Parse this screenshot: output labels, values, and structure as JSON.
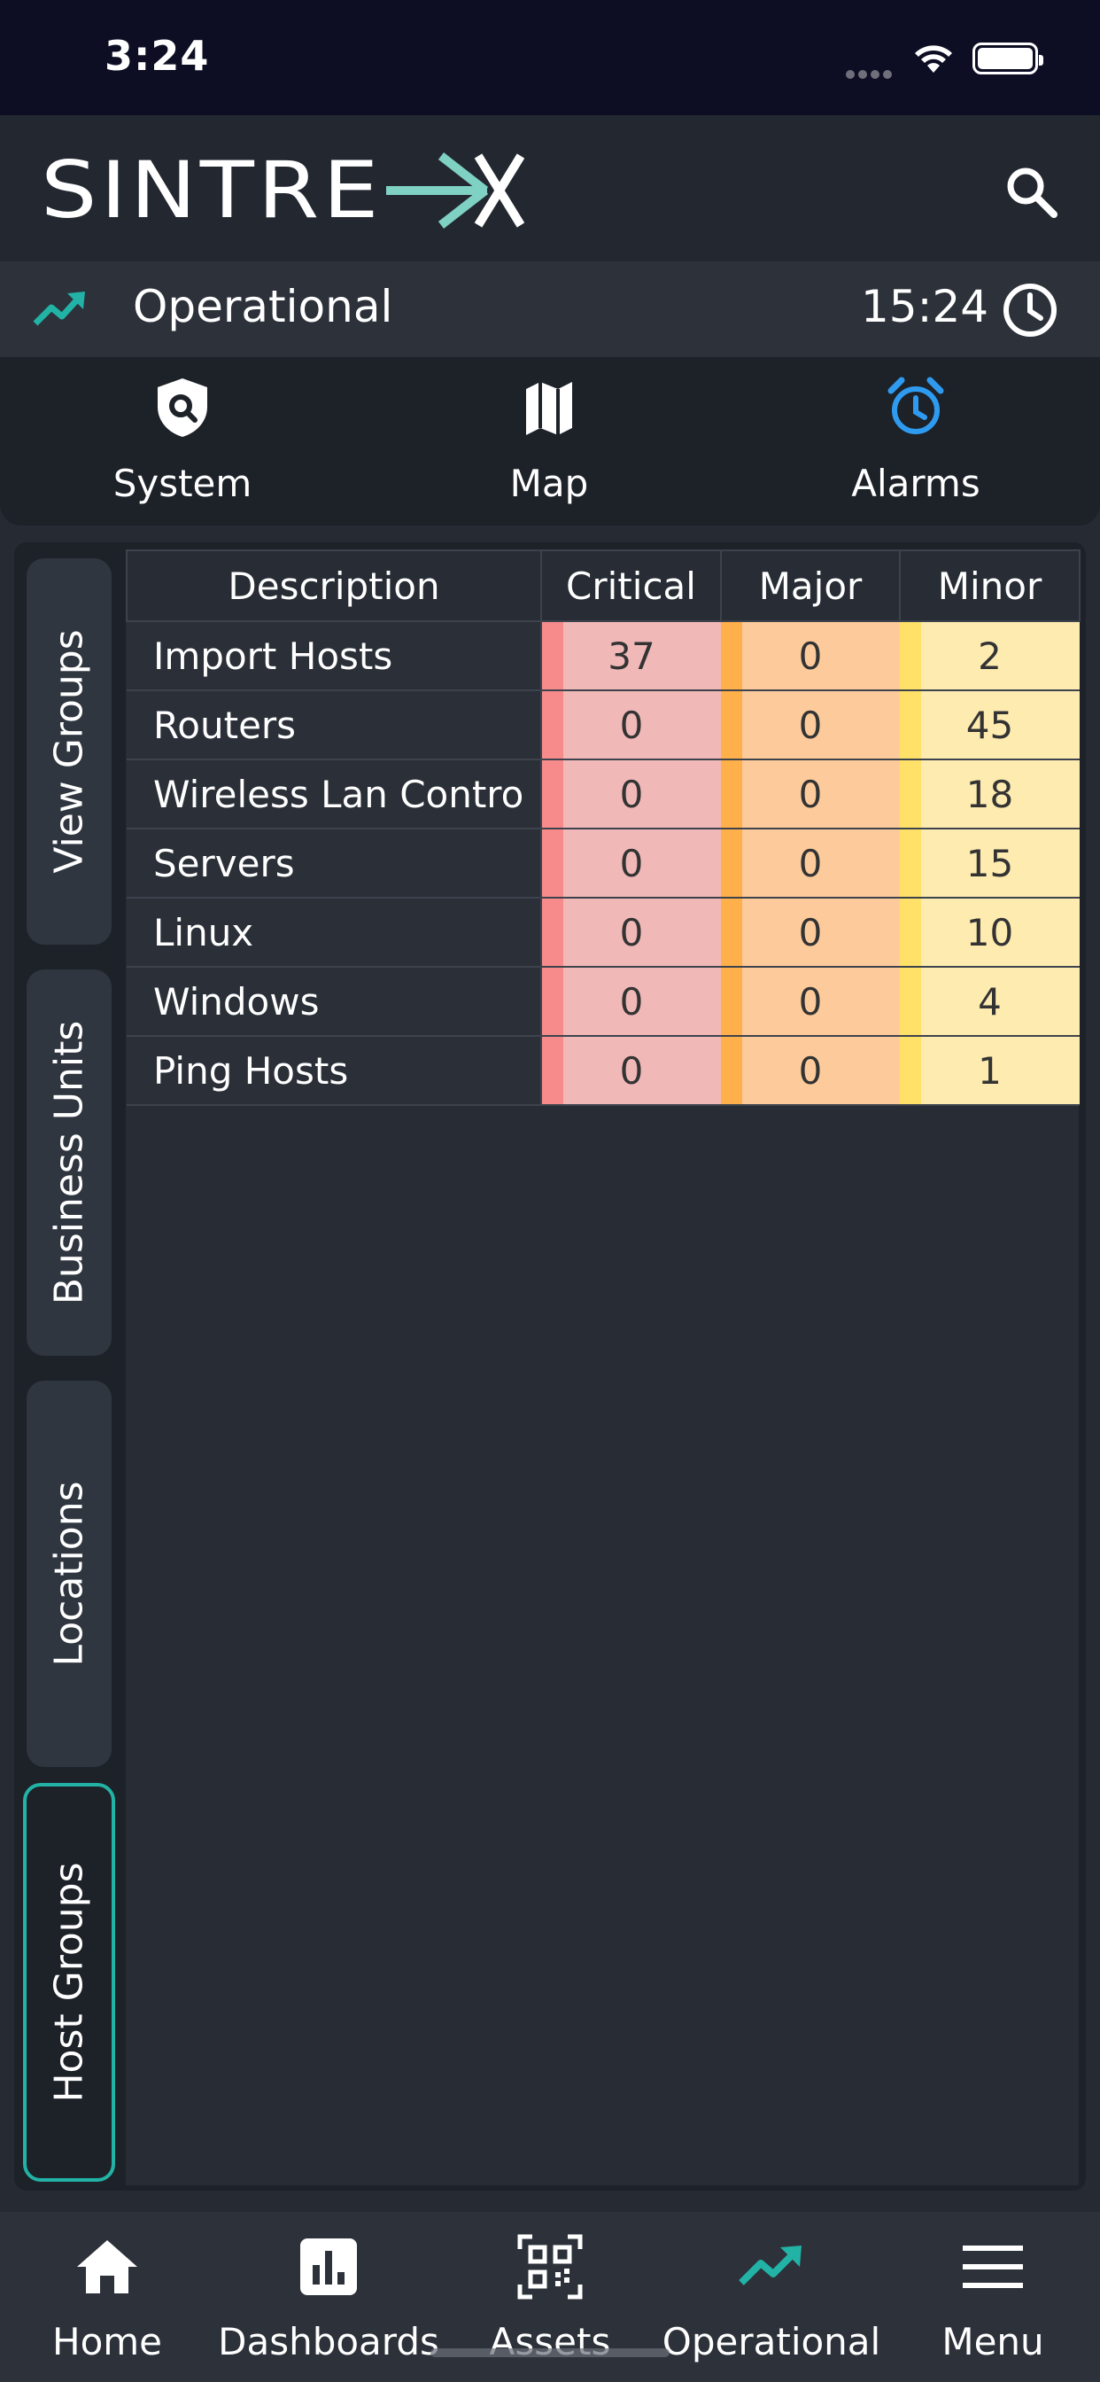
{
  "status_bar": {
    "time": "3:24"
  },
  "header": {
    "brand": "SINTRE",
    "icons": {
      "search": "search-icon"
    }
  },
  "status_strip": {
    "state": "Operational",
    "time": "15:24",
    "icons": {
      "trend": "trending-up-icon",
      "clock": "clock-icon"
    }
  },
  "top_tabs": [
    {
      "label": "System",
      "icon": "shield-search-icon"
    },
    {
      "label": "Map",
      "icon": "map-icon"
    },
    {
      "label": "Alarms",
      "icon": "alarm-clock-icon",
      "active": true
    }
  ],
  "side_tabs": [
    {
      "label": "View Groups"
    },
    {
      "label": "Business Units"
    },
    {
      "label": "Locations"
    },
    {
      "label": "Host Groups",
      "active": true
    }
  ],
  "table": {
    "headers": {
      "description": "Description",
      "critical": "Critical",
      "major": "Major",
      "minor": "Minor"
    },
    "rows": [
      {
        "description": "Import Hosts",
        "critical": "37",
        "major": "0",
        "minor": "2"
      },
      {
        "description": "Routers",
        "critical": "0",
        "major": "0",
        "minor": "45"
      },
      {
        "description": "Wireless Lan Contro",
        "critical": "0",
        "major": "0",
        "minor": "18"
      },
      {
        "description": "Servers",
        "critical": "0",
        "major": "0",
        "minor": "15"
      },
      {
        "description": "Linux",
        "critical": "0",
        "major": "0",
        "minor": "10"
      },
      {
        "description": "Windows",
        "critical": "0",
        "major": "0",
        "minor": "4"
      },
      {
        "description": "Ping Hosts",
        "critical": "0",
        "major": "0",
        "minor": "1"
      }
    ]
  },
  "bottom_nav": [
    {
      "label": "Home",
      "icon": "home-icon"
    },
    {
      "label": "Dashboards",
      "icon": "bar-chart-icon"
    },
    {
      "label": "Assets",
      "icon": "qr-code-icon"
    },
    {
      "label": "Operational",
      "icon": "trending-up-icon",
      "active": true
    },
    {
      "label": "Menu",
      "icon": "menu-icon"
    }
  ],
  "colors": {
    "accent_teal": "#22b3a6",
    "alarm_blue": "#2f9bf0",
    "critical_bg": "#f1b8b8",
    "major_bg": "#fdcb9b",
    "minor_bg": "#feebb0"
  }
}
